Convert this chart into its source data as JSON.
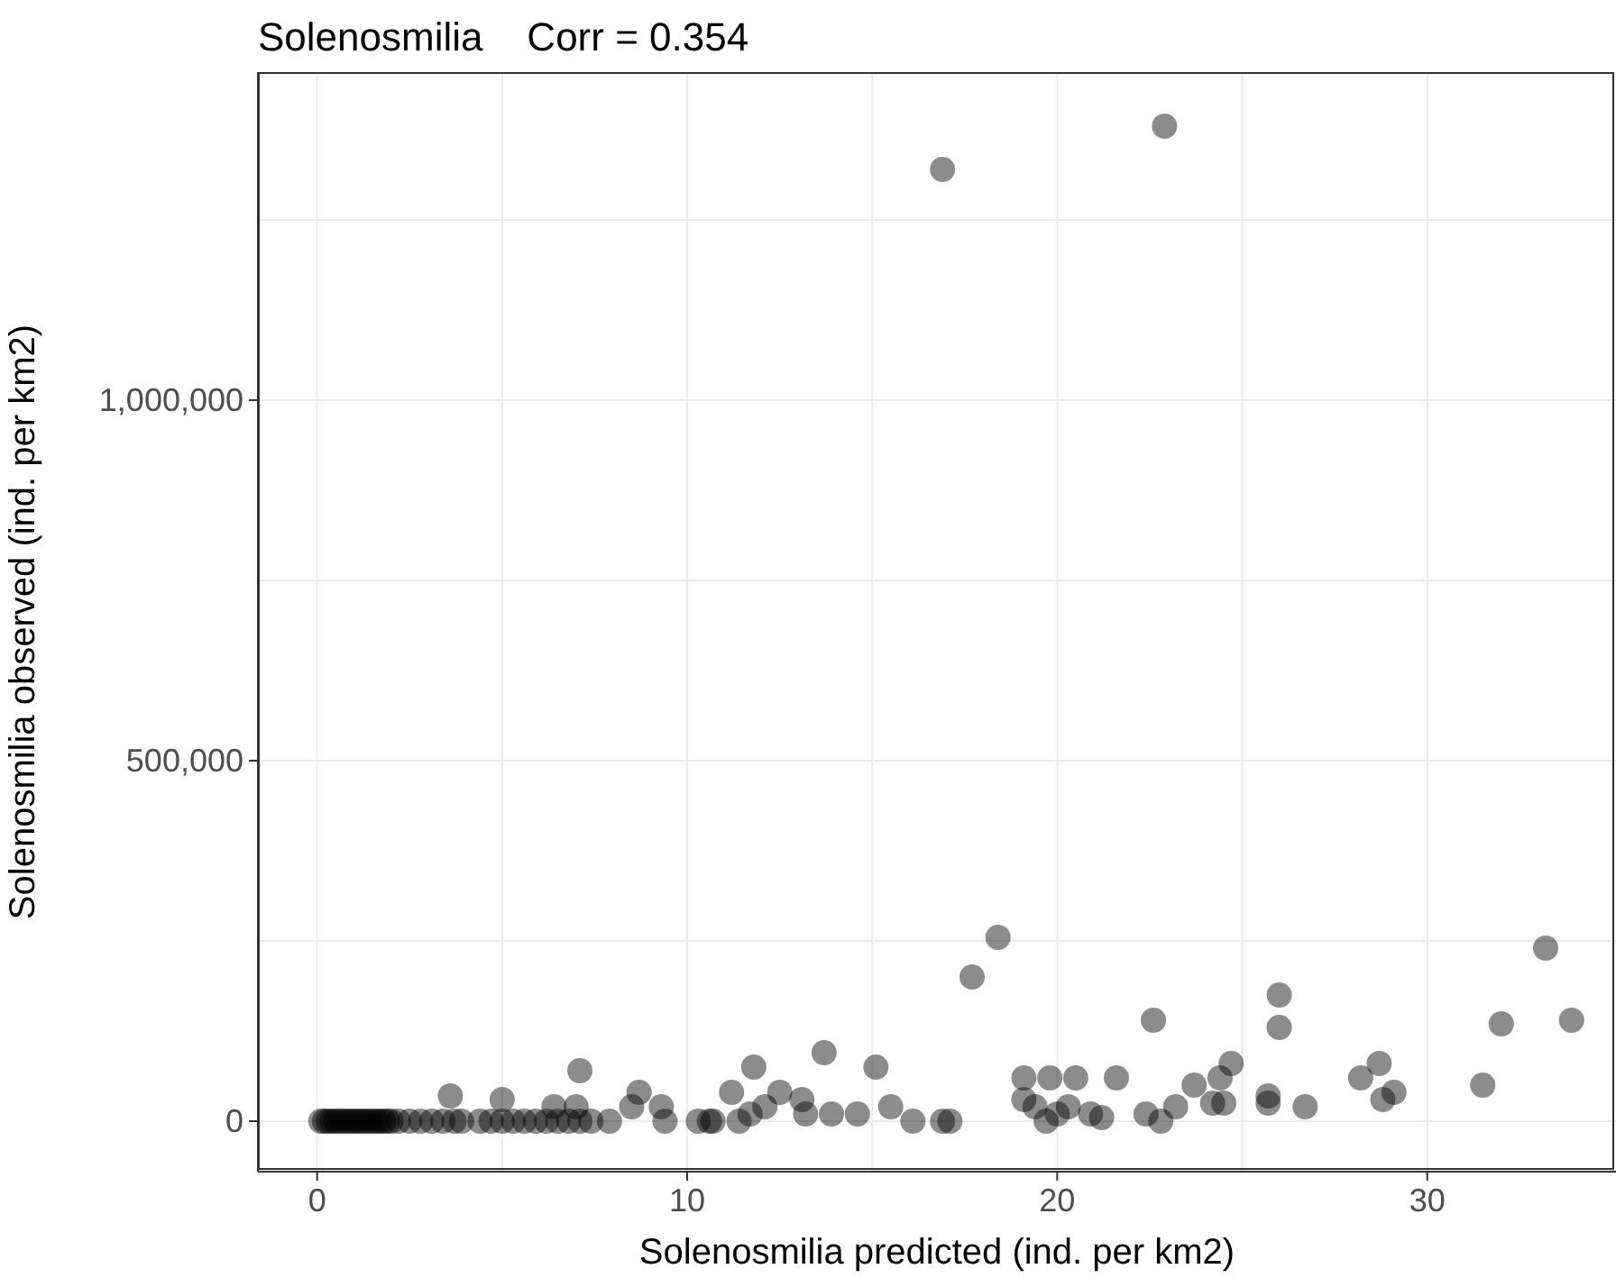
{
  "chart_data": {
    "type": "scatter",
    "title": "Solenosmilia    Corr = 0.354",
    "xlabel": "Solenosmilia predicted (ind. per km2)",
    "ylabel": "Solenosmilia observed (ind. per km2)",
    "x": [
      0.1,
      0.2,
      0.3,
      0.4,
      0.5,
      0.6,
      0.7,
      0.8,
      0.9,
      1.0,
      1.1,
      1.2,
      1.3,
      1.4,
      1.5,
      1.6,
      1.7,
      1.8,
      1.9,
      2.0,
      2.2,
      2.5,
      2.8,
      3.1,
      3.4,
      3.7,
      3.9,
      4.4,
      4.7,
      5.0,
      5.3,
      5.6,
      5.9,
      6.2,
      6.5,
      6.8,
      7.1,
      7.4,
      7.9,
      9.4,
      10.3,
      10.6,
      7.1,
      3.6,
      5.0,
      8.7,
      8.5,
      9.3,
      6.4,
      7.0,
      10.7,
      11.2,
      11.4,
      11.7,
      11.8,
      12.1,
      12.5,
      13.1,
      13.2,
      13.7,
      13.9,
      14.6,
      15.1,
      15.5,
      16.1,
      16.9,
      17.1,
      17.7,
      18.4,
      19.1,
      19.4,
      19.7,
      19.8,
      20.0,
      20.3,
      20.5,
      20.9,
      21.2,
      21.6,
      22.4,
      22.6,
      22.8,
      23.2,
      23.7,
      24.2,
      24.4,
      24.5,
      24.7,
      25.7,
      25.7,
      26.0,
      26.0,
      26.7,
      28.2,
      28.7,
      28.8,
      29.1,
      31.5,
      32.0,
      33.2,
      33.9,
      16.9,
      22.9,
      19.1
    ],
    "values": [
      0,
      0,
      0,
      0,
      0,
      0,
      0,
      0,
      0,
      0,
      0,
      0,
      0,
      0,
      0,
      0,
      0,
      0,
      0,
      0,
      0,
      0,
      0,
      0,
      0,
      0,
      0,
      0,
      0,
      0,
      0,
      0,
      0,
      0,
      0,
      0,
      0,
      0,
      0,
      0,
      0,
      0,
      70000,
      35000,
      30000,
      40000,
      20000,
      20000,
      20000,
      20000,
      0,
      40000,
      0,
      10000,
      75000,
      20000,
      40000,
      30000,
      10000,
      95000,
      10000,
      10000,
      75000,
      20000,
      0,
      0,
      0,
      200000,
      255000,
      60000,
      20000,
      0,
      60000,
      10000,
      20000,
      60000,
      10000,
      5000,
      60000,
      10000,
      140000,
      0,
      20000,
      50000,
      25000,
      60000,
      25000,
      80000,
      35000,
      25000,
      175000,
      130000,
      20000,
      60000,
      80000,
      30000,
      40000,
      50000,
      135000,
      240000,
      140000,
      1320000,
      1380000,
      30000
    ],
    "color": "#000000",
    "xlim": [
      -1.6,
      35.1
    ],
    "ylim": [
      -70000,
      1455000
    ],
    "xticks": [
      0,
      {
        "value": 5,
        "label": null
      },
      10,
      {
        "value": 15,
        "label": null
      },
      20,
      {
        "value": 25,
        "label": null
      },
      30,
      {
        "value": 35,
        "label": null
      }
    ],
    "yticks": [
      {
        "value": 0,
        "label": "0"
      },
      {
        "value": 250000,
        "label": null
      },
      {
        "value": 500000,
        "label": "500,000"
      },
      {
        "value": 750000,
        "label": null
      },
      {
        "value": 1000000,
        "label": "1,000,000"
      },
      {
        "value": 1250000,
        "label": null
      }
    ],
    "grid": true,
    "marker": "circle"
  }
}
